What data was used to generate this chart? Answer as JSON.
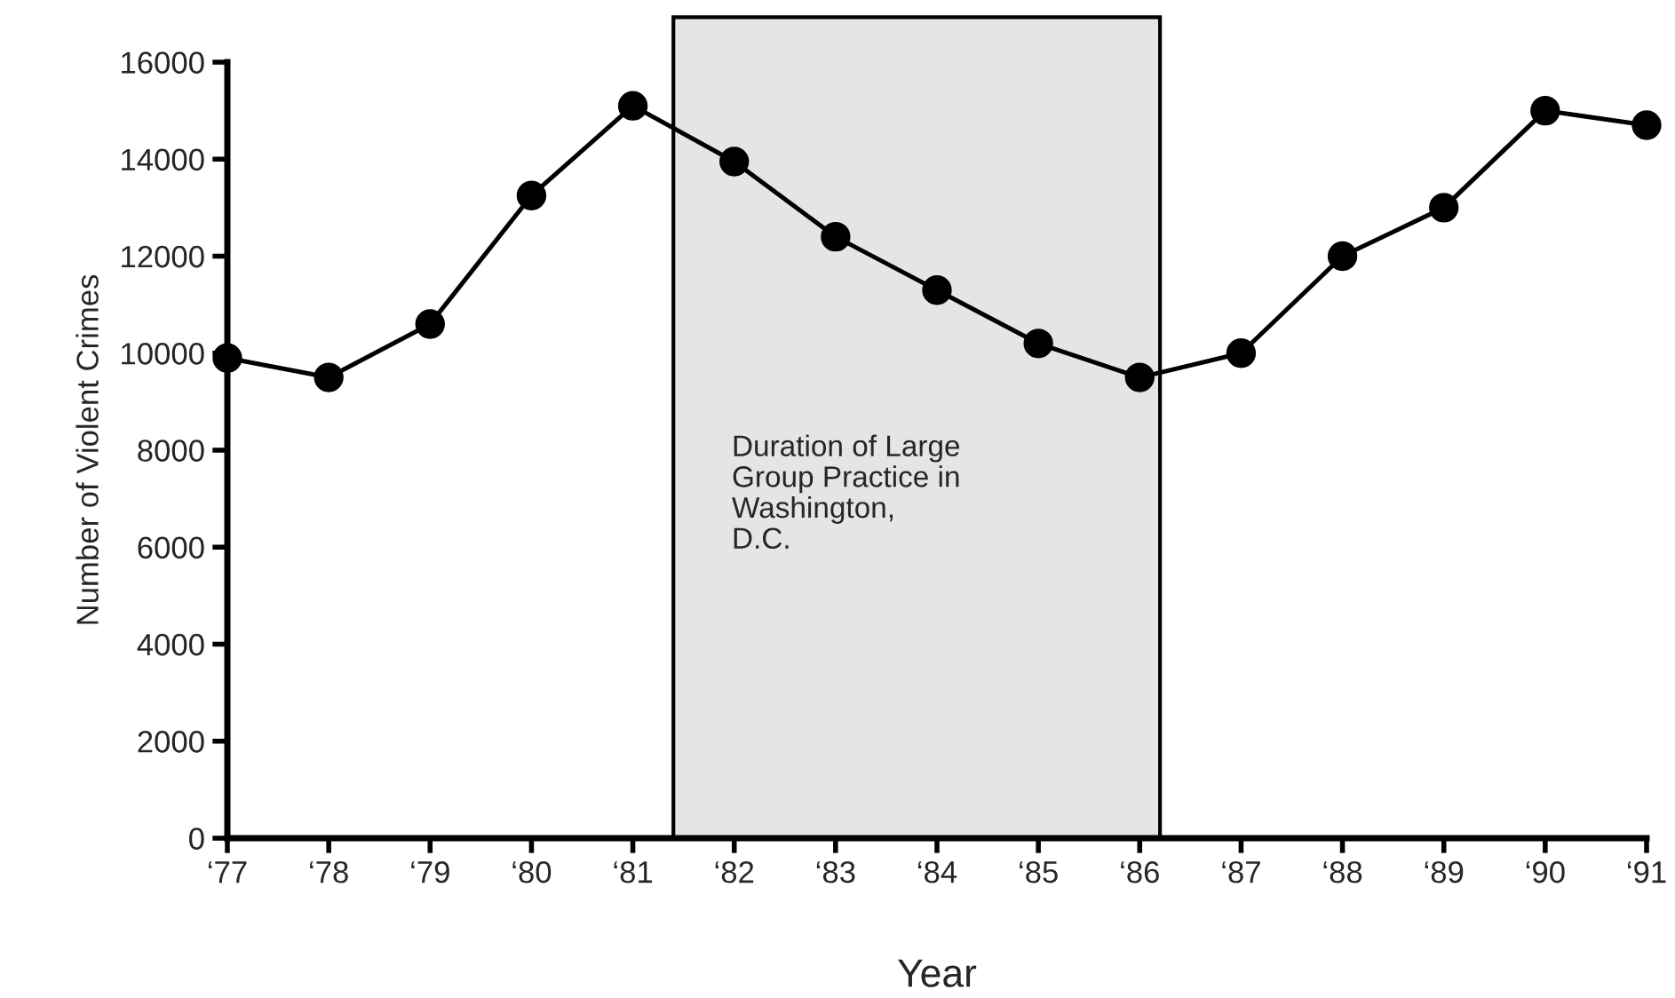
{
  "chart_data": {
    "type": "line",
    "xlabel": "Year",
    "ylabel": "Number of Violent Crimes",
    "x": [
      77,
      78,
      79,
      80,
      81,
      82,
      83,
      84,
      85,
      86,
      87,
      88,
      89,
      90,
      91
    ],
    "series": [
      {
        "color": "#000000",
        "values": [
          9900,
          9500,
          10600,
          13250,
          15100,
          13950,
          12400,
          11300,
          10200,
          9500,
          10000,
          12000,
          13000,
          15000,
          14700
        ]
      }
    ],
    "xlim": [
      77,
      91
    ],
    "xticks": [
      {
        "value": 77,
        "label": "‘77"
      },
      {
        "value": 78,
        "label": "‘78"
      },
      {
        "value": 79,
        "label": "‘79"
      },
      {
        "value": 80,
        "label": "‘80"
      },
      {
        "value": 81,
        "label": "‘81"
      },
      {
        "value": 82,
        "label": "‘82"
      },
      {
        "value": 83,
        "label": "‘83"
      },
      {
        "value": 84,
        "label": "‘84"
      },
      {
        "value": 85,
        "label": "‘85"
      },
      {
        "value": 86,
        "label": "‘86"
      },
      {
        "value": 87,
        "label": "‘87"
      },
      {
        "value": 88,
        "label": "‘88"
      },
      {
        "value": 89,
        "label": "‘89"
      },
      {
        "value": 90,
        "label": "‘90"
      },
      {
        "value": 91,
        "label": "‘91"
      }
    ],
    "ylim": [
      0,
      16000
    ],
    "yticks": [
      0,
      2000,
      4000,
      6000,
      8000,
      10000,
      12000,
      14000,
      16000
    ],
    "bands": [
      {
        "axis": "x",
        "from": 81.4,
        "to": 86.2,
        "label": "Duration of Large\nGroup Practice in\nWashington,\nD.C.",
        "color": "#e5e5e5"
      }
    ],
    "marker": "circle",
    "line_style": "solid",
    "grid": false,
    "legend": false
  }
}
